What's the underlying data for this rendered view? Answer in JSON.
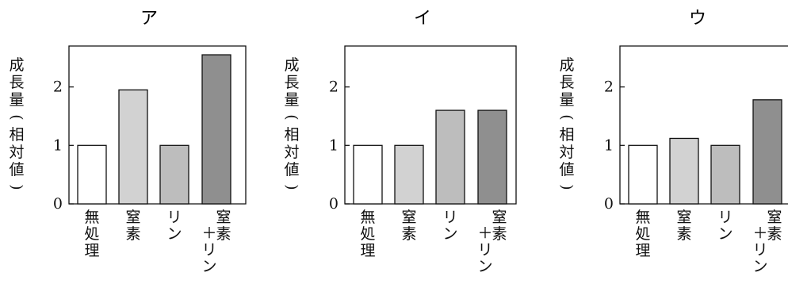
{
  "chart_data": [
    {
      "type": "bar",
      "title": "ア",
      "ylabel": "成長量(相対値)",
      "categories": [
        "無処理",
        "窒素",
        "リン",
        "窒素＋リン"
      ],
      "category_lines": [
        [
          "無処理"
        ],
        [
          "窒素"
        ],
        [
          "リン"
        ],
        [
          "窒素",
          "＋リン"
        ]
      ],
      "values": [
        1.0,
        1.95,
        1.0,
        2.55
      ],
      "yticks": [
        "0",
        "1",
        "2"
      ],
      "ylim": [
        0,
        2.7
      ],
      "grid": false,
      "bar_fills": [
        "#ffffff",
        "#d2d2d2",
        "#bdbdbd",
        "#8f8f8f"
      ]
    },
    {
      "type": "bar",
      "title": "イ",
      "ylabel": "成長量(相対値)",
      "categories": [
        "無処理",
        "窒素",
        "リン",
        "窒素＋リン"
      ],
      "category_lines": [
        [
          "無処理"
        ],
        [
          "窒素"
        ],
        [
          "リン"
        ],
        [
          "窒素",
          "＋リン"
        ]
      ],
      "values": [
        1.0,
        1.0,
        1.6,
        1.6
      ],
      "yticks": [
        "0",
        "1",
        "2"
      ],
      "ylim": [
        0,
        2.7
      ],
      "grid": false,
      "bar_fills": [
        "#ffffff",
        "#d2d2d2",
        "#bdbdbd",
        "#8f8f8f"
      ]
    },
    {
      "type": "bar",
      "title": "ウ",
      "ylabel": "成長量(相対値)",
      "categories": [
        "無処理",
        "窒素",
        "リン",
        "窒素＋リン"
      ],
      "category_lines": [
        [
          "無処理"
        ],
        [
          "窒素"
        ],
        [
          "リン"
        ],
        [
          "窒素",
          "＋リン"
        ]
      ],
      "values": [
        1.0,
        1.12,
        1.0,
        1.78
      ],
      "yticks": [
        "0",
        "1",
        "2"
      ],
      "ylim": [
        0,
        2.7
      ],
      "grid": false,
      "bar_fills": [
        "#ffffff",
        "#d2d2d2",
        "#bdbdbd",
        "#8f8f8f"
      ]
    }
  ]
}
